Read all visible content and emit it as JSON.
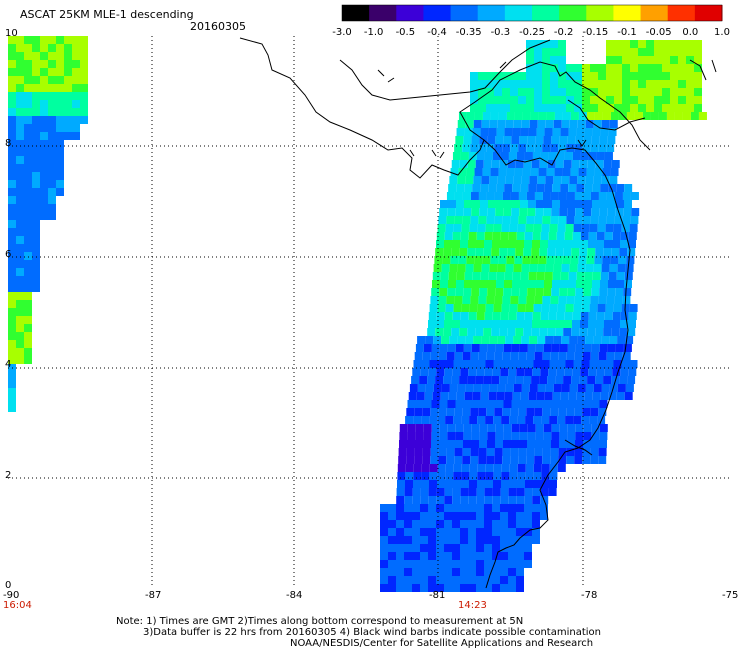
{
  "header": {
    "title": "ASCAT 25KM MLE-1 descending",
    "date": "20160305"
  },
  "colorbar": {
    "tick_labels": [
      "-3.0",
      "-1.0",
      "-0.5",
      "-0.4",
      "-0.35",
      "-0.3",
      "-0.25",
      "-0.2",
      "-0.15",
      "-0.1",
      "-0.05",
      "0.0",
      "1.0"
    ],
    "colors": [
      "#000000",
      "#3a006a",
      "#3c00d8",
      "#0026ff",
      "#006cff",
      "#00aaff",
      "#00e0f0",
      "#00ffa0",
      "#30ff30",
      "#a8ff00",
      "#ffff00",
      "#ffa000",
      "#ff3000",
      "#e00000"
    ]
  },
  "axes": {
    "x_ticks": [
      "-90",
      "-87",
      "-84",
      "-81",
      "-78",
      "-75"
    ],
    "y_ticks": [
      "0",
      "2",
      "4",
      "6",
      "8",
      "10"
    ],
    "x_range": [
      -90,
      -75
    ],
    "y_range": [
      0,
      10
    ]
  },
  "times": [
    "16:04",
    "14:23"
  ],
  "notes": {
    "line1": "Note: 1) Times are GMT 2)Times along bottom correspond to measurement at 5N",
    "line2": "3)Data buffer is 22 hrs from 20160305 4) Black wind barbs indicate possible contamination",
    "line3": "NOAA/NESDIS/Center for Satellite Applications and Research"
  }
}
